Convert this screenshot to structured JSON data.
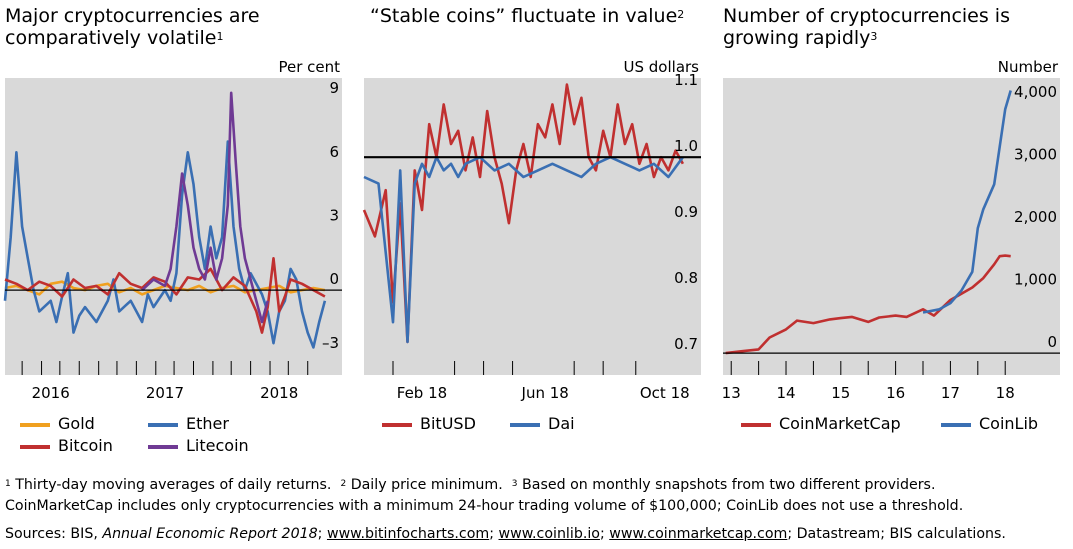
{
  "colors": {
    "panel_bg": "#d9d9d9",
    "gold": "#f0a020",
    "ether": "#3a6fb3",
    "bitcoin": "#c03030",
    "litecoin": "#6f3a94",
    "bitusd": "#c03030",
    "dai": "#3a6fb3",
    "coinmarketcap": "#c03030",
    "coinlib": "#3a6fb3",
    "zero_line": "#000000"
  },
  "panels": [
    {
      "title_line1": "Major cryptocurrencies are",
      "title_line2": "comparatively volatile",
      "footnote_mark": "1",
      "unit": "Per cent",
      "legend": [
        {
          "label": "Gold",
          "color_key": "gold"
        },
        {
          "label": "Ether",
          "color_key": "ether"
        },
        {
          "label": "Bitcoin",
          "color_key": "bitcoin"
        },
        {
          "label": "Litecoin",
          "color_key": "litecoin"
        }
      ]
    },
    {
      "title_line1": "“Stable coins” fluctuate in value",
      "title_line2": "",
      "footnote_mark": "2",
      "unit": "US dollars",
      "legend": [
        {
          "label": "BitUSD",
          "color_key": "bitusd"
        },
        {
          "label": "Dai",
          "color_key": "dai"
        }
      ]
    },
    {
      "title_line1": "Number of cryptocurrencies is",
      "title_line2": "growing rapidly",
      "footnote_mark": "3",
      "unit": "Number",
      "legend": [
        {
          "label": "CoinMarketCap",
          "color_key": "coinmarketcap"
        },
        {
          "label": "CoinLib",
          "color_key": "coinlib"
        }
      ]
    }
  ],
  "chart_data": [
    {
      "type": "line",
      "title": "Major cryptocurrencies are comparatively volatile",
      "ylabel": "Per cent",
      "ylim": [
        -4,
        10
      ],
      "xlim": [
        2015.6,
        2018.55
      ],
      "yticks": [
        -3,
        0,
        3,
        6,
        9
      ],
      "ytick_labels": [
        "–3",
        "0",
        "3",
        "6",
        "9"
      ],
      "xtick_labels": [
        {
          "label": "2016",
          "x": 2016.0
        },
        {
          "label": "2017",
          "x": 2017.0
        },
        {
          "label": "2018",
          "x": 2018.0
        }
      ],
      "monthly_ticks": [
        2015.75,
        2015.92,
        2016.08,
        2016.25,
        2016.42,
        2016.58,
        2016.75,
        2016.92,
        2017.08,
        2017.25,
        2017.42,
        2017.58,
        2017.75,
        2017.92,
        2018.08,
        2018.25
      ],
      "zero_line": 0,
      "series": [
        {
          "name": "Gold",
          "color_key": "gold",
          "x": [
            2015.6,
            2015.7,
            2015.8,
            2015.9,
            2016.0,
            2016.1,
            2016.2,
            2016.3,
            2016.4,
            2016.5,
            2016.6,
            2016.7,
            2016.8,
            2016.9,
            2017.0,
            2017.1,
            2017.2,
            2017.3,
            2017.4,
            2017.5,
            2017.6,
            2017.7,
            2017.8,
            2017.9,
            2018.0,
            2018.1,
            2018.2,
            2018.3,
            2018.4
          ],
          "y": [
            0.1,
            0.2,
            0.0,
            -0.2,
            0.3,
            0.4,
            0.1,
            0.0,
            0.2,
            0.3,
            -0.1,
            0.1,
            -0.2,
            0.0,
            0.2,
            0.1,
            0.0,
            0.2,
            -0.1,
            0.1,
            0.2,
            -0.1,
            0.0,
            0.1,
            0.2,
            -0.1,
            0.0,
            0.1,
            0.0
          ]
        },
        {
          "name": "Ether",
          "color_key": "ether",
          "x": [
            2015.6,
            2015.65,
            2015.7,
            2015.75,
            2015.8,
            2015.85,
            2015.9,
            2016.0,
            2016.05,
            2016.1,
            2016.15,
            2016.2,
            2016.25,
            2016.3,
            2016.4,
            2016.5,
            2016.55,
            2016.6,
            2016.7,
            2016.8,
            2016.85,
            2016.9,
            2017.0,
            2017.05,
            2017.1,
            2017.15,
            2017.2,
            2017.25,
            2017.3,
            2017.35,
            2017.4,
            2017.45,
            2017.5,
            2017.55,
            2017.6,
            2017.65,
            2017.7,
            2017.75,
            2017.8,
            2017.85,
            2017.9,
            2017.95,
            2018.0,
            2018.05,
            2018.1,
            2018.15,
            2018.2,
            2018.25,
            2018.3,
            2018.35,
            2018.4
          ],
          "y": [
            -0.5,
            2.5,
            6.5,
            3.0,
            1.5,
            0.0,
            -1.0,
            -0.5,
            -1.5,
            -0.3,
            0.8,
            -2.0,
            -1.2,
            -0.8,
            -1.5,
            -0.5,
            0.5,
            -1.0,
            -0.5,
            -1.5,
            -0.2,
            -0.8,
            0.0,
            -0.5,
            0.8,
            4.5,
            6.5,
            5.0,
            2.5,
            1.0,
            3.0,
            1.5,
            2.5,
            7.0,
            3.0,
            1.0,
            0.0,
            0.8,
            0.3,
            -0.2,
            -1.0,
            -2.5,
            -1.0,
            -0.5,
            1.0,
            0.5,
            -1.0,
            -2.0,
            -2.7,
            -1.5,
            -0.5
          ]
        },
        {
          "name": "Bitcoin",
          "color_key": "bitcoin",
          "x": [
            2015.6,
            2015.7,
            2015.8,
            2015.9,
            2016.0,
            2016.1,
            2016.2,
            2016.3,
            2016.4,
            2016.5,
            2016.6,
            2016.7,
            2016.8,
            2016.9,
            2017.0,
            2017.1,
            2017.2,
            2017.3,
            2017.4,
            2017.5,
            2017.6,
            2017.7,
            2017.8,
            2017.85,
            2017.9,
            2017.95,
            2018.0,
            2018.05,
            2018.1,
            2018.2,
            2018.3,
            2018.4
          ],
          "y": [
            0.5,
            0.3,
            0.0,
            0.4,
            0.2,
            -0.3,
            0.5,
            0.1,
            0.2,
            -0.2,
            0.8,
            0.3,
            0.1,
            0.6,
            0.4,
            -0.2,
            0.6,
            0.5,
            1.0,
            0.0,
            0.6,
            0.2,
            -1.0,
            -2.0,
            -0.8,
            1.5,
            -1.0,
            -0.3,
            0.5,
            0.3,
            0.0,
            -0.3
          ]
        },
        {
          "name": "Litecoin",
          "color_key": "litecoin",
          "x": [
            2016.8,
            2016.9,
            2017.0,
            2017.05,
            2017.1,
            2017.15,
            2017.2,
            2017.25,
            2017.3,
            2017.35,
            2017.4,
            2017.45,
            2017.5,
            2017.55,
            2017.58,
            2017.62,
            2017.66,
            2017.7,
            2017.75,
            2017.8,
            2017.85,
            2017.9
          ],
          "y": [
            0.0,
            0.5,
            0.2,
            1.0,
            3.0,
            5.5,
            4.0,
            2.0,
            1.0,
            0.5,
            2.0,
            0.5,
            1.5,
            4.0,
            9.3,
            6.0,
            3.0,
            1.5,
            0.5,
            -0.5,
            -1.5,
            -0.5
          ]
        }
      ]
    },
    {
      "type": "line",
      "title": "“Stable coins” fluctuate in value",
      "ylabel": "US dollars",
      "ylim": [
        0.67,
        1.12
      ],
      "xlim": [
        2017.92,
        2018.85
      ],
      "yticks": [
        0.7,
        0.8,
        0.9,
        1.0,
        1.1
      ],
      "ytick_labels": [
        "0.7",
        "0.8",
        "0.9",
        "1.0",
        "1.1"
      ],
      "xtick_labels": [
        {
          "label": "Feb 18",
          "x": 2018.08
        },
        {
          "label": "Jun 18",
          "x": 2018.42
        },
        {
          "label": "Oct 18",
          "x": 2018.75
        }
      ],
      "monthly_ticks": [
        2018.0,
        2018.17,
        2018.25,
        2018.33,
        2018.5,
        2018.58,
        2018.67
      ],
      "reference_line": 1.0,
      "series": [
        {
          "name": "BitUSD",
          "color_key": "bitusd",
          "x": [
            2017.92,
            2017.95,
            2017.98,
            2018.0,
            2018.02,
            2018.04,
            2018.06,
            2018.08,
            2018.1,
            2018.12,
            2018.14,
            2018.16,
            2018.18,
            2018.2,
            2018.22,
            2018.24,
            2018.26,
            2018.28,
            2018.3,
            2018.32,
            2018.34,
            2018.36,
            2018.38,
            2018.4,
            2018.42,
            2018.44,
            2018.46,
            2018.48,
            2018.5,
            2018.52,
            2018.54,
            2018.56,
            2018.58,
            2018.6,
            2018.62,
            2018.64,
            2018.66,
            2018.68,
            2018.7,
            2018.72,
            2018.74,
            2018.76,
            2018.78,
            2018.8
          ],
          "y": [
            0.92,
            0.88,
            0.95,
            0.78,
            0.93,
            0.72,
            0.98,
            0.92,
            1.05,
            1.0,
            1.08,
            1.02,
            1.04,
            0.98,
            1.03,
            0.97,
            1.07,
            1.0,
            0.96,
            0.9,
            0.98,
            1.02,
            0.97,
            1.05,
            1.03,
            1.08,
            1.02,
            1.11,
            1.05,
            1.09,
            1.0,
            0.98,
            1.04,
            1.0,
            1.08,
            1.02,
            1.05,
            0.99,
            1.02,
            0.97,
            1.0,
            0.98,
            1.01,
            0.99
          ]
        },
        {
          "name": "Dai",
          "color_key": "dai",
          "x": [
            2017.92,
            2017.96,
            2018.0,
            2018.02,
            2018.04,
            2018.06,
            2018.08,
            2018.1,
            2018.12,
            2018.14,
            2018.16,
            2018.18,
            2018.2,
            2018.24,
            2018.28,
            2018.32,
            2018.36,
            2018.4,
            2018.44,
            2018.48,
            2018.52,
            2018.56,
            2018.6,
            2018.64,
            2018.68,
            2018.72,
            2018.76,
            2018.8
          ],
          "y": [
            0.97,
            0.96,
            0.75,
            0.98,
            0.72,
            0.96,
            0.99,
            0.97,
            1.0,
            0.98,
            0.99,
            0.97,
            0.99,
            1.0,
            0.98,
            0.99,
            0.97,
            0.98,
            0.99,
            0.98,
            0.97,
            0.99,
            1.0,
            0.99,
            0.98,
            0.99,
            0.97,
            1.0
          ]
        }
      ]
    },
    {
      "type": "line",
      "title": "Number of cryptocurrencies is growing rapidly",
      "ylabel": "Number",
      "ylim": [
        -350,
        4400
      ],
      "xlim": [
        2012.85,
        2019.0
      ],
      "yticks": [
        0,
        1000,
        2000,
        3000,
        4000
      ],
      "ytick_labels": [
        "0",
        "1,000",
        "2,000",
        "3,000",
        "4,000"
      ],
      "xtick_labels": [
        {
          "label": "13",
          "x": 2013.0
        },
        {
          "label": "14",
          "x": 2014.0
        },
        {
          "label": "15",
          "x": 2015.0
        },
        {
          "label": "16",
          "x": 2016.0
        },
        {
          "label": "17",
          "x": 2017.0
        },
        {
          "label": "18",
          "x": 2018.0
        }
      ],
      "monthly_ticks": [
        2013.0,
        2013.5,
        2014.0,
        2014.5,
        2015.0,
        2015.5,
        2016.0,
        2016.5,
        2017.0,
        2017.5,
        2018.0
      ],
      "zero_line": 0,
      "series": [
        {
          "name": "CoinMarketCap",
          "color_key": "coinmarketcap",
          "x": [
            2012.9,
            2013.2,
            2013.5,
            2013.7,
            2014.0,
            2014.2,
            2014.5,
            2014.8,
            2015.0,
            2015.2,
            2015.5,
            2015.7,
            2016.0,
            2016.2,
            2016.5,
            2016.7,
            2017.0,
            2017.2,
            2017.4,
            2017.6,
            2017.8,
            2017.9,
            2018.0,
            2018.1
          ],
          "y": [
            0,
            30,
            60,
            250,
            380,
            520,
            480,
            540,
            560,
            580,
            500,
            570,
            600,
            580,
            700,
            600,
            850,
            950,
            1050,
            1200,
            1420,
            1550,
            1560,
            1550
          ]
        },
        {
          "name": "CoinLib",
          "color_key": "coinlib",
          "x": [
            2016.5,
            2016.8,
            2017.0,
            2017.2,
            2017.4,
            2017.5,
            2017.6,
            2017.8,
            2017.9,
            2018.0,
            2018.1
          ],
          "y": [
            650,
            700,
            800,
            1000,
            1300,
            2000,
            2300,
            2700,
            3300,
            3900,
            4200
          ]
        }
      ]
    }
  ],
  "footer": {
    "notes": [
      {
        "mark": "1",
        "text": "Thirty-day moving averages of daily returns."
      },
      {
        "mark": "2",
        "text": "Daily price minimum."
      },
      {
        "mark": "3",
        "text": "Based on monthly snapshots from two different providers."
      }
    ],
    "line2": "CoinMarketCap includes only cryptocurrencies with a minimum 24-hour trading volume of $100,000; CoinLib does not use a threshold.",
    "sources_prefix": "Sources: BIS,",
    "sources_report": "Annual Economic Report 2018",
    "sources_sep1": ";",
    "sources_link1": "www.bitinfocharts.com",
    "sources_sep2": ";",
    "sources_link2": "www.coinlib.io",
    "sources_sep3": ";",
    "sources_link3": "www.coinmarketcap.com",
    "sources_rest": "; Datastream; BIS calculations."
  }
}
